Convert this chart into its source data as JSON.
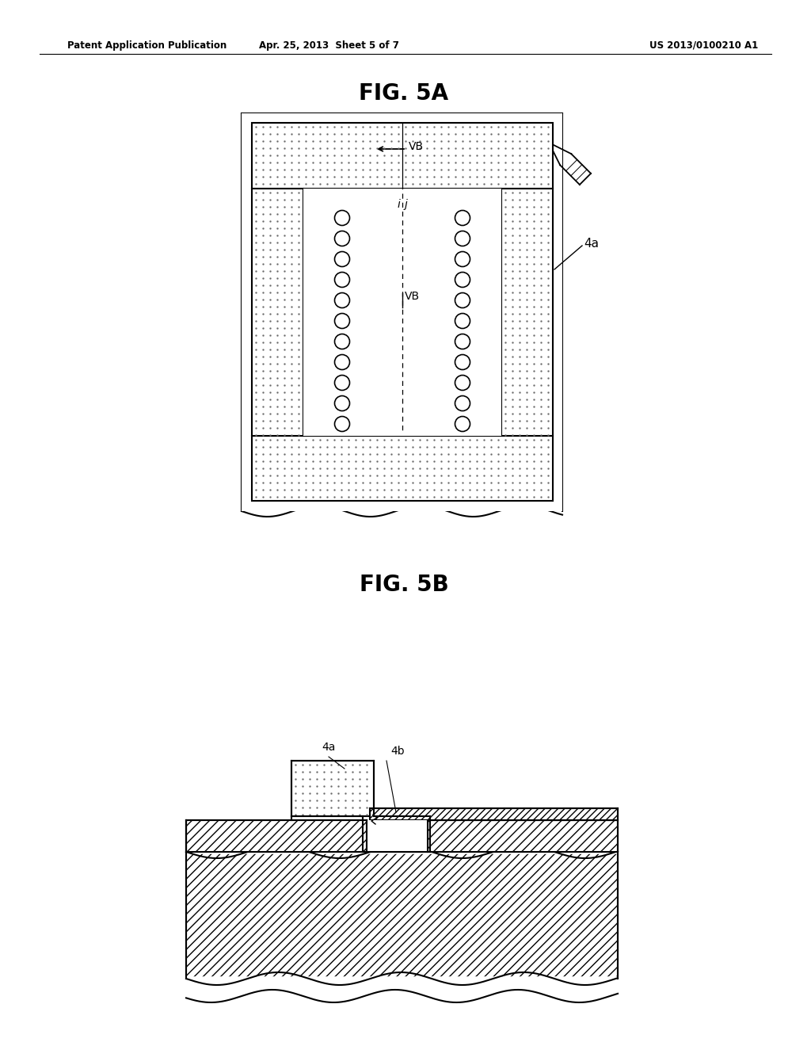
{
  "title_header_left": "Patent Application Publication",
  "title_header_mid": "Apr. 25, 2013  Sheet 5 of 7",
  "title_header_right": "US 2013/0100210 A1",
  "fig5a_title": "FIG. 5A",
  "fig5b_title": "FIG. 5B",
  "label_4a": "4a",
  "label_4b": "4b",
  "bg_color": "#ffffff",
  "line_color": "#000000"
}
